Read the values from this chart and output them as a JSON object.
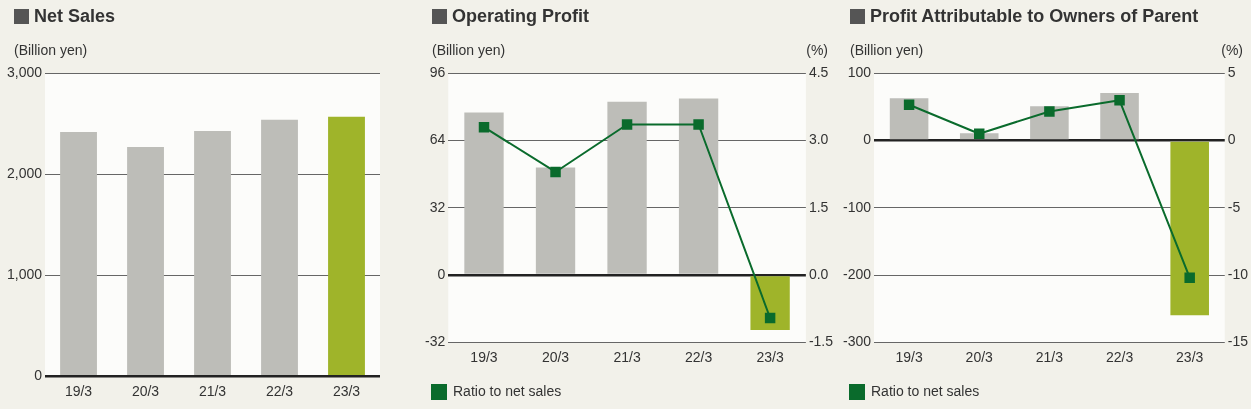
{
  "chart_data": [
    {
      "type": "bar",
      "title": "Net Sales",
      "ylabel": "(Billion yen)",
      "categories": [
        "19/3",
        "20/3",
        "21/3",
        "22/3",
        "23/3"
      ],
      "series": [
        {
          "colors": [
            "#bdbdb8",
            "#bdbdb8",
            "#bdbdb8",
            "#bdbdb8",
            "#9fb42a"
          ],
          "values": [
            2420,
            2270,
            2430,
            2540,
            2570
          ]
        }
      ],
      "ylim": [
        0,
        3000
      ],
      "yticks": [
        0,
        {
          "value": 1000,
          "label": "1,000"
        },
        {
          "value": 2000,
          "label": "2,000"
        },
        {
          "value": 3000,
          "label": "3,000"
        }
      ],
      "grid": "y"
    },
    {
      "type": "bar",
      "title": "Operating Profit",
      "ylabel": "(Billion yen)",
      "y2label": "(%)",
      "categories": [
        "19/3",
        "20/3",
        "21/3",
        "22/3",
        "23/3"
      ],
      "series": [
        {
          "colors": [
            "#bdbdb8",
            "#bdbdb8",
            "#bdbdb8",
            "#bdbdb8",
            "#9fb42a"
          ],
          "values": [
            77.4,
            51.2,
            82.5,
            84.1,
            -26.2
          ]
        },
        {
          "type": "line",
          "name": "Ratio to net sales",
          "color": "#0a6b2c",
          "axis": "y2",
          "marker": "square",
          "values": [
            3.3,
            2.3,
            3.36,
            3.36,
            -0.96
          ]
        }
      ],
      "ylim": [
        -32,
        96
      ],
      "yticks": [
        -32,
        0,
        32,
        64,
        96
      ],
      "y2lim": [
        -1.5,
        4.5
      ],
      "y2ticks": [
        -1.5,
        {
          "value": 0,
          "label": "0.0"
        },
        1.5,
        {
          "value": 3,
          "label": "3.0"
        },
        4.5
      ],
      "grid": "y",
      "legend": "bottom left"
    },
    {
      "type": "bar",
      "title": "Profit Attributable to Owners of Parent",
      "ylabel": "(Billion yen)",
      "y2label": "(%)",
      "categories": [
        "19/3",
        "20/3",
        "21/3",
        "22/3",
        "23/3"
      ],
      "series": [
        {
          "colors": [
            "#bdbdb8",
            "#bdbdb8",
            "#bdbdb8",
            "#bdbdb8",
            "#9fb42a"
          ],
          "values": [
            63,
            11,
            51,
            71,
            -260
          ]
        },
        {
          "type": "line",
          "name": "Ratio to net sales",
          "color": "#0a6b2c",
          "axis": "y2",
          "marker": "square",
          "values": [
            2.67,
            0.51,
            2.17,
            3.0,
            -10.2
          ]
        }
      ],
      "ylim": [
        -300,
        100
      ],
      "yticks": [
        -300,
        -200,
        -100,
        0,
        100
      ],
      "y2lim": [
        -15,
        5
      ],
      "y2ticks": [
        -15,
        -10,
        -5,
        0,
        5
      ],
      "grid": "y",
      "legend": "bottom left"
    }
  ]
}
